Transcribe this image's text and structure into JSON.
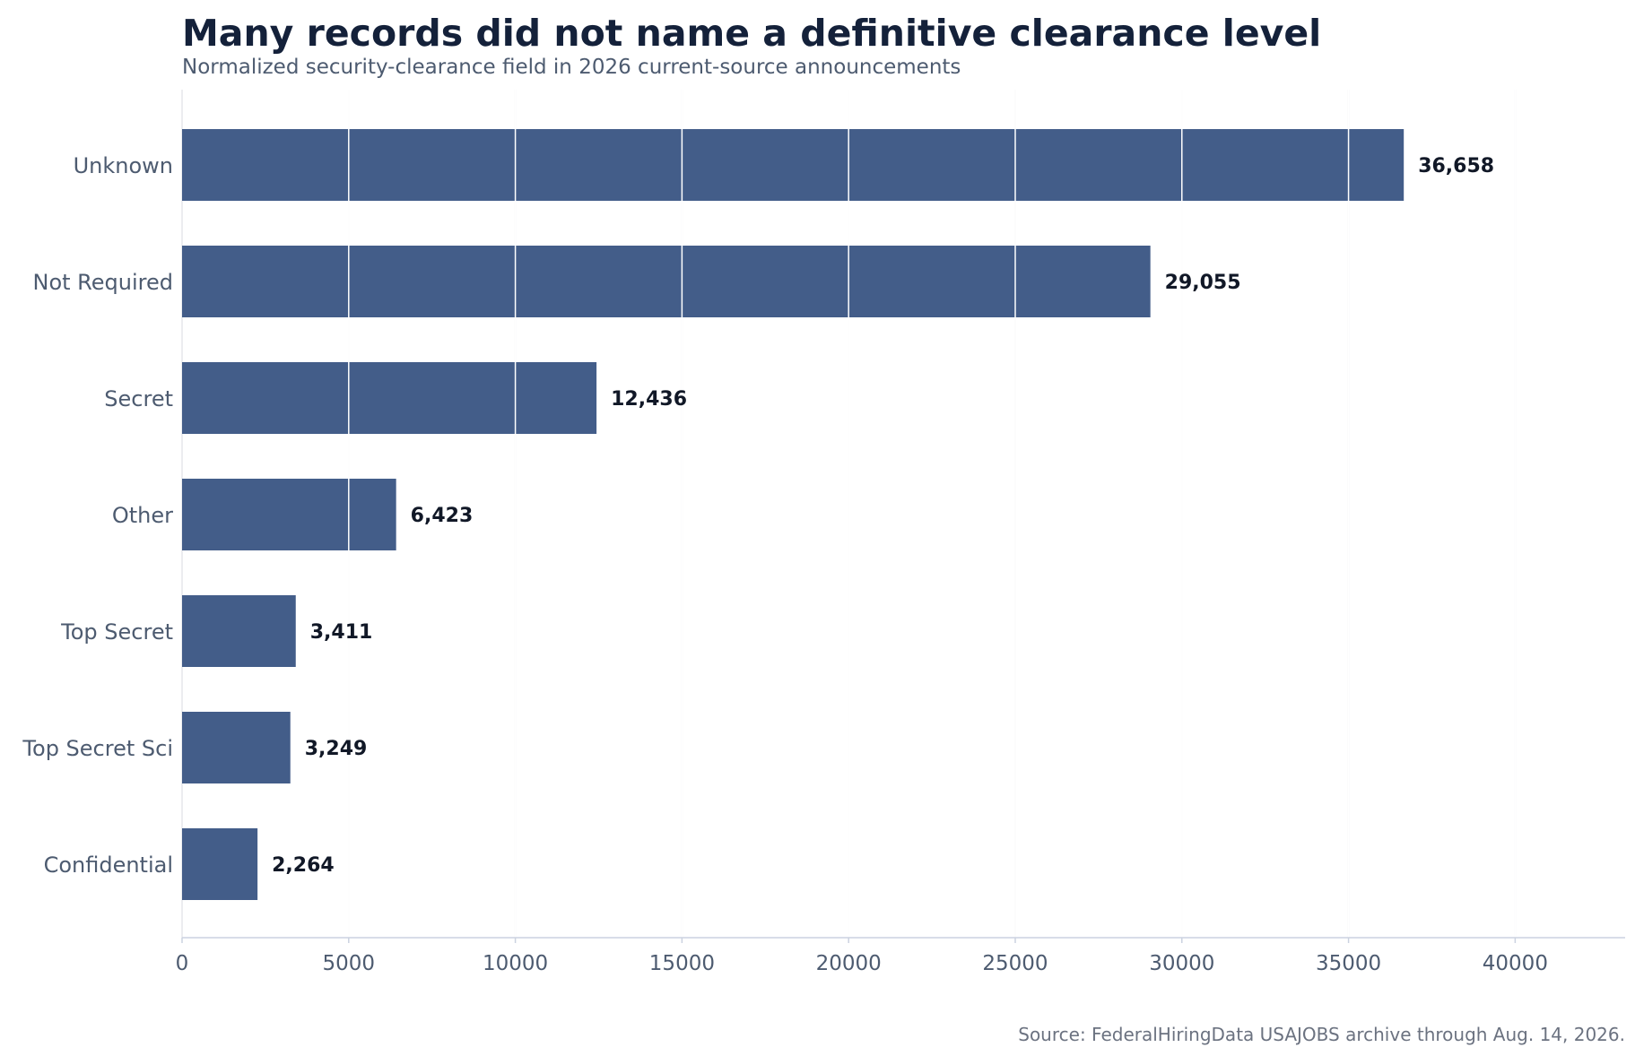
{
  "chart_data": {
    "type": "bar",
    "orientation": "horizontal",
    "title": "Many records did not name a definitive clearance level",
    "subtitle": "Normalized security-clearance field in 2026 current-source announcements",
    "categories": [
      "Unknown",
      "Not Required",
      "Secret",
      "Other",
      "Top Secret",
      "Top Secret Sci",
      "Confidential"
    ],
    "values": [
      36658,
      29055,
      12436,
      6423,
      3411,
      3249,
      2264
    ],
    "value_labels": [
      "36,658",
      "29,055",
      "12,436",
      "6,423",
      "3,411",
      "3,249",
      "2,264"
    ],
    "xlim": [
      0,
      43300
    ],
    "x_ticks": [
      0,
      5000,
      10000,
      15000,
      20000,
      25000,
      30000,
      35000,
      40000
    ],
    "x_tick_labels": [
      "0",
      "5000",
      "10000",
      "15000",
      "20000",
      "25000",
      "30000",
      "35000",
      "40000"
    ],
    "xlabel": "",
    "ylabel": "",
    "grid": "vertical",
    "bar_color": "#435d89",
    "source": "Source: FederalHiringData USAJOBS archive through Aug. 14, 2026."
  }
}
